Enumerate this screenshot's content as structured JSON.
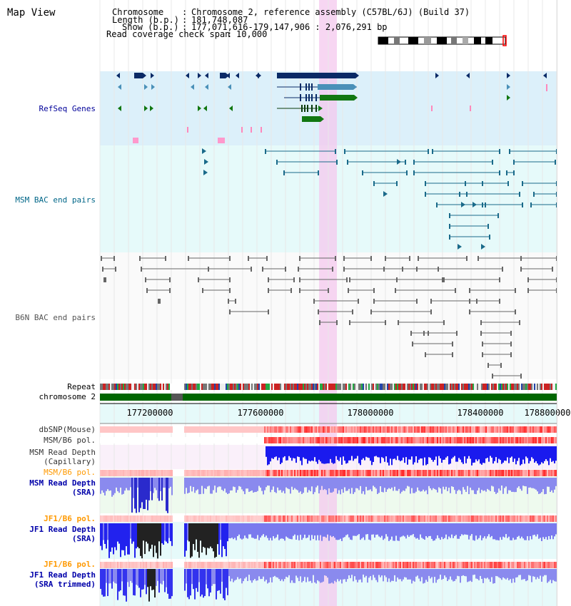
{
  "title": "Map View",
  "info": {
    "chromosome_key": "Chromosome",
    "chromosome_val": "Chromosome 2, reference assembly (C57BL/6J) (Build 37)",
    "length_key": "Length (b.p.)",
    "length_val": "181,748,087",
    "show_key": "Show (b.p.)",
    "show_val": "177,071,616-179,147,906 : 2,076,291 bp",
    "coverage_key": "Read coverage check span",
    "coverage_val": "10,000"
  },
  "tracks": {
    "refseq": "RefSeq Genes",
    "msm_bac": "MSM BAC end pairs",
    "b6n_bac": "B6N BAC end pairs",
    "repeat": "Repeat",
    "chromosome": "chromosome 2",
    "dbsnp": "dbSNP(Mouse)",
    "msm_b6_pol_1": "MSM/B6 pol.",
    "msm_depth_cap_1": "MSM Read Depth",
    "msm_depth_cap_2": "(Capillary)",
    "msm_b6_pol_2": "MSM/B6 pol.",
    "msm_depth_sra_1": "MSM Read Depth",
    "msm_depth_sra_2": "(SRA)",
    "jf1_b6_pol_1": "JF1/B6 pol.",
    "jf1_depth_sra_1": "JF1 Read Depth",
    "jf1_depth_sra_2": "(SRA)",
    "jf1_b6_pol_2": "JF1/B6 pol.",
    "jf1_depth_trim_1": "JF1 Read Depth",
    "jf1_depth_trim_2": "(SRA trimmed)"
  },
  "axis": {
    "ticks": [
      "177200000",
      "177600000",
      "178000000",
      "178400000",
      "178800000"
    ]
  },
  "colors": {
    "refseq_label": "#000099",
    "msm_bac_label": "#006688",
    "b6n_label": "#555555",
    "pol_orange": "#ff9900",
    "depth_blue": "#0000aa",
    "gray_label": "#333333"
  }
}
